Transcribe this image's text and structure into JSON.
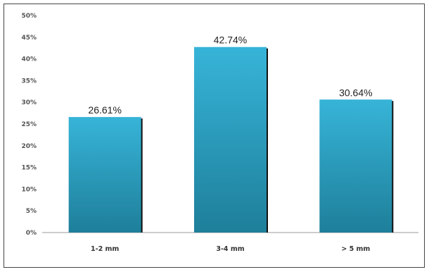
{
  "chart_data": {
    "type": "bar",
    "categories": [
      "1-2 mm",
      "3-4 mm",
      "> 5 mm"
    ],
    "values": [
      26.61,
      42.74,
      30.64
    ],
    "data_labels": [
      "26.61%",
      "42.74%",
      "30.64%"
    ],
    "title": "",
    "xlabel": "",
    "ylabel": "",
    "ylim": [
      0,
      50
    ],
    "yticks": [
      "0%",
      "5%",
      "10%",
      "15%",
      "20%",
      "25%",
      "30%",
      "35%",
      "40%",
      "45%",
      "50%"
    ],
    "grid": false,
    "legend": "none",
    "colors": {
      "bar_top": "#37b4d8",
      "bar_bottom": "#1e7f9a",
      "bar_shadow": "#111111"
    }
  }
}
